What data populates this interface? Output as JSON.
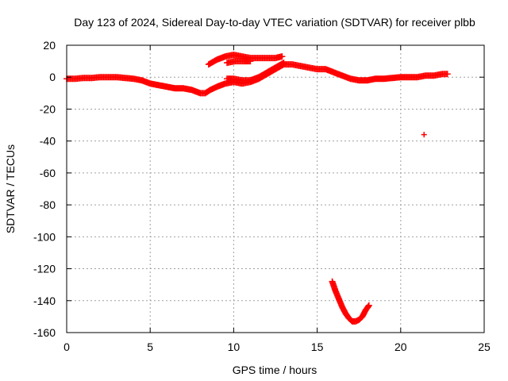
{
  "chart_data": {
    "type": "scatter",
    "title": "Day 123 of 2024, Sidereal Day-to-day VTEC variation (SDTVAR) for receiver plbb",
    "xlabel": "GPS time / hours",
    "ylabel": "SDTVAR / TECUs",
    "xlim": [
      0,
      25
    ],
    "ylim": [
      -160,
      20
    ],
    "xticks": [
      0,
      5,
      10,
      15,
      20,
      25
    ],
    "xtick_labels": [
      "0",
      "5",
      "10",
      "15",
      "20",
      "25"
    ],
    "yticks": [
      20,
      0,
      -20,
      -40,
      -60,
      -80,
      -100,
      -120,
      -140,
      -160
    ],
    "ytick_labels": [
      "20",
      "0",
      "-20",
      "-40",
      "-60",
      "-80",
      "-100",
      "-120",
      "-140",
      "-160"
    ],
    "grid": true,
    "marker": "+",
    "series": [
      {
        "name": "main trace",
        "color": "#ff0000",
        "points": [
          [
            0.0,
            -1
          ],
          [
            0.5,
            -1
          ],
          [
            1.0,
            -0.5
          ],
          [
            1.5,
            -0.5
          ],
          [
            2.0,
            0
          ],
          [
            2.5,
            0
          ],
          [
            3.0,
            0
          ],
          [
            3.5,
            -0.5
          ],
          [
            4.0,
            -1
          ],
          [
            4.5,
            -2
          ],
          [
            5.0,
            -4
          ],
          [
            5.5,
            -5
          ],
          [
            6.0,
            -6
          ],
          [
            6.5,
            -7
          ],
          [
            7.0,
            -7
          ],
          [
            7.5,
            -8
          ],
          [
            8.0,
            -10
          ],
          [
            8.3,
            -10
          ],
          [
            8.6,
            -8
          ],
          [
            9.0,
            -6
          ],
          [
            9.5,
            -4
          ],
          [
            10.0,
            -3
          ],
          [
            10.5,
            -4
          ],
          [
            11.0,
            -3
          ],
          [
            11.5,
            -1
          ],
          [
            12.0,
            2
          ],
          [
            12.5,
            5
          ],
          [
            13.0,
            8
          ],
          [
            13.5,
            8
          ],
          [
            14.0,
            7
          ],
          [
            14.5,
            6
          ],
          [
            15.0,
            5
          ],
          [
            15.5,
            5
          ],
          [
            16.0,
            3
          ],
          [
            16.5,
            1
          ],
          [
            17.0,
            -1
          ],
          [
            17.5,
            -2
          ],
          [
            18.0,
            -2
          ],
          [
            18.5,
            -1
          ],
          [
            19.0,
            -1
          ],
          [
            19.5,
            -0.5
          ],
          [
            20.0,
            0
          ],
          [
            20.5,
            0
          ],
          [
            21.0,
            0
          ],
          [
            21.5,
            1
          ],
          [
            22.0,
            1
          ],
          [
            22.5,
            2
          ],
          [
            22.8,
            2
          ]
        ]
      },
      {
        "name": "upper arc",
        "color": "#ff0000",
        "points": [
          [
            8.5,
            8
          ],
          [
            9.0,
            11
          ],
          [
            9.5,
            13
          ],
          [
            10.0,
            14
          ],
          [
            10.5,
            13
          ],
          [
            11.0,
            12
          ],
          [
            11.5,
            12
          ],
          [
            12.0,
            12
          ],
          [
            12.5,
            12
          ],
          [
            12.9,
            13
          ]
        ]
      },
      {
        "name": "middle branch",
        "color": "#ff0000",
        "points": [
          [
            9.6,
            9
          ],
          [
            10.1,
            10
          ],
          [
            10.6,
            10
          ],
          [
            11.0,
            10
          ]
        ]
      },
      {
        "name": "rising branch",
        "color": "#ff0000",
        "points": [
          [
            9.6,
            -1
          ],
          [
            10.0,
            -1
          ],
          [
            10.5,
            -2
          ],
          [
            11.0,
            -2
          ],
          [
            11.5,
            0
          ],
          [
            12.0,
            3
          ],
          [
            12.5,
            6
          ],
          [
            13.0,
            9
          ]
        ]
      },
      {
        "name": "low dip",
        "color": "#ff0000",
        "points": [
          [
            15.9,
            -128
          ],
          [
            16.1,
            -134
          ],
          [
            16.3,
            -139
          ],
          [
            16.5,
            -144
          ],
          [
            16.7,
            -148
          ],
          [
            16.9,
            -151
          ],
          [
            17.1,
            -153
          ],
          [
            17.3,
            -153
          ],
          [
            17.5,
            -152
          ],
          [
            17.7,
            -150
          ],
          [
            17.9,
            -146
          ],
          [
            18.1,
            -143
          ]
        ]
      },
      {
        "name": "outlier",
        "color": "#ff0000",
        "points": [
          [
            21.4,
            -36
          ]
        ]
      }
    ]
  }
}
